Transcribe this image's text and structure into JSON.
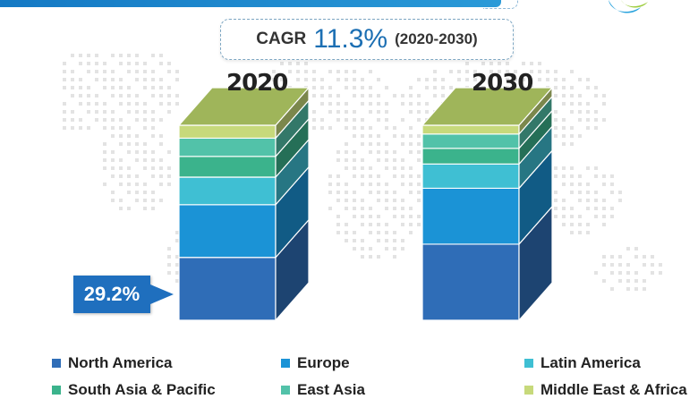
{
  "cagr": {
    "label": "CAGR",
    "value": "11.3%",
    "period": "(2020-2030)"
  },
  "callout": {
    "text": "29.2%"
  },
  "chart_data": {
    "type": "bar",
    "stacked": true,
    "categories": [
      "2020",
      "2030"
    ],
    "series": [
      {
        "name": "North America",
        "color": "#2f6db7",
        "values": [
          29.2,
          32.0
        ]
      },
      {
        "name": "Europe",
        "color": "#1b93d6",
        "values": [
          24.5,
          23.5
        ]
      },
      {
        "name": "Latin America",
        "color": "#3fbfd3",
        "values": [
          12.8,
          10.2
        ]
      },
      {
        "name": "South Asia & Pacific",
        "color": "#3bb38c",
        "values": [
          9.6,
          6.6
        ]
      },
      {
        "name": "East Asia",
        "color": "#52c2a9",
        "values": [
          8.5,
          6.0
        ]
      },
      {
        "name": "Middle East & Africa",
        "color": "#c7d97b",
        "values": [
          6.0,
          3.7
        ]
      }
    ],
    "top_color": "#9fb55a"
  }
}
